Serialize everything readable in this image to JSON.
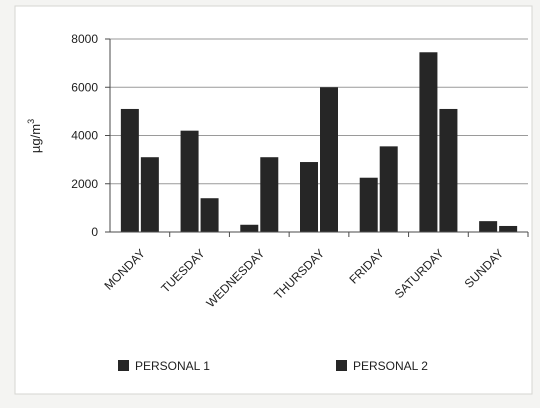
{
  "chart_data": {
    "type": "bar",
    "categories": [
      "MONDAY",
      "TUESDAY",
      "WEDNESDAY",
      "THURSDAY",
      "FRIDAY",
      "SATURDAY",
      "SUNDAY"
    ],
    "series": [
      {
        "name": "PERSONAL 1",
        "values": [
          5100,
          4200,
          300,
          2900,
          2250,
          7450,
          450
        ]
      },
      {
        "name": "PERSONAL 2",
        "values": [
          3100,
          1400,
          3100,
          6000,
          3550,
          5100,
          250
        ]
      }
    ],
    "ylabel_base": "µg/m",
    "ylabel_exp": "3",
    "ylim": [
      0,
      8000
    ],
    "yticks": [
      0,
      2000,
      4000,
      6000,
      8000
    ],
    "grid": true,
    "legend": "bottom",
    "colors": {
      "bar": "#262626",
      "grid": "#9a9a9a",
      "axis": "#4a4a4a"
    }
  }
}
